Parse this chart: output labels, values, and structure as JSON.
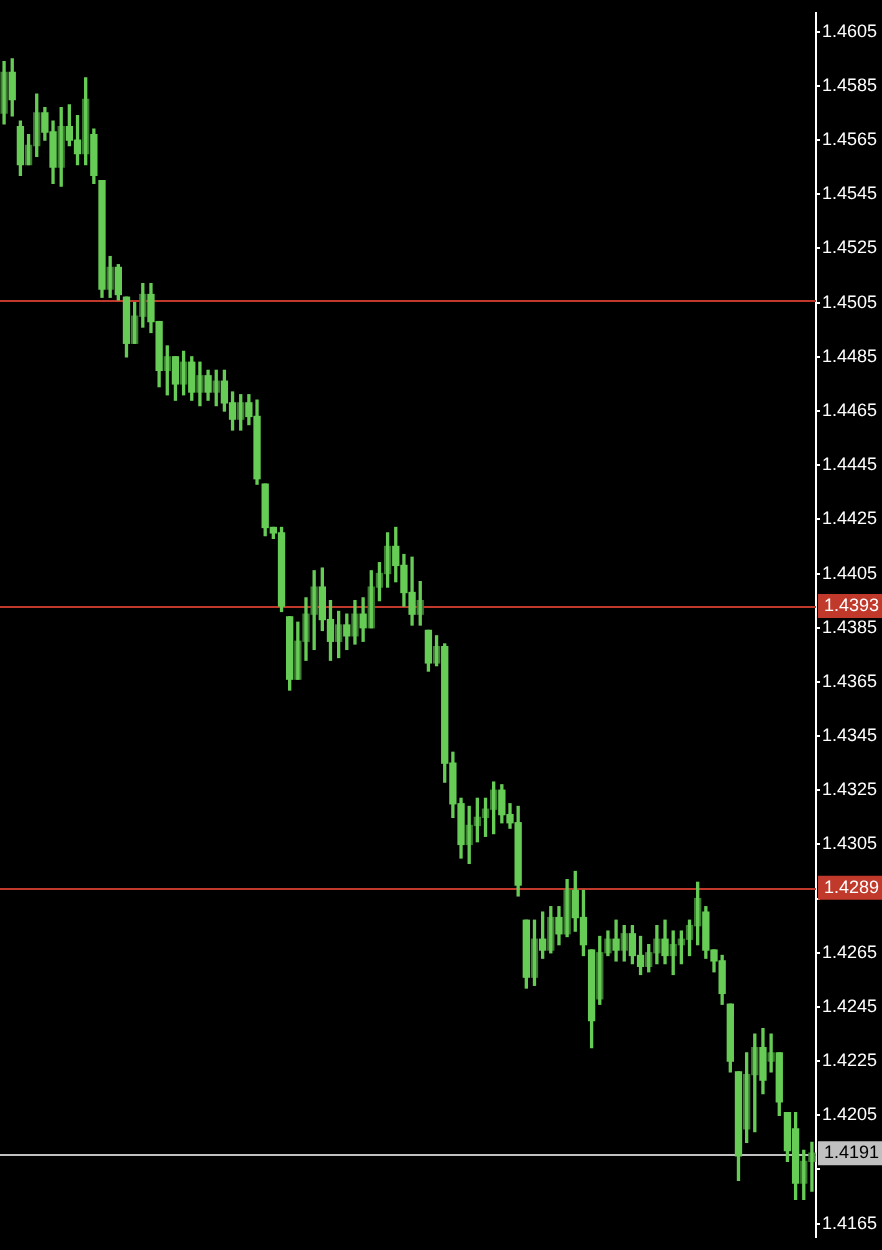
{
  "chart_data": {
    "type": "candlestick",
    "color": "#66cc55",
    "categories": [
      null,
      null,
      null,
      null,
      null,
      null,
      null,
      null,
      null,
      null,
      null,
      null,
      null,
      null,
      null,
      null,
      null,
      null,
      null,
      null,
      null,
      null,
      null,
      null,
      null,
      null,
      null,
      null,
      null,
      null,
      null,
      null,
      null,
      null,
      null,
      null,
      null,
      null,
      null,
      null,
      null,
      null,
      null,
      null,
      null,
      null,
      null,
      null,
      null,
      null,
      null,
      null,
      null,
      null,
      null,
      null,
      null,
      null,
      null,
      null,
      null,
      null,
      null,
      null,
      null,
      null,
      null,
      null,
      null,
      null,
      null,
      null,
      null,
      null,
      null,
      null,
      null,
      null,
      null,
      null,
      null,
      null,
      null,
      null,
      null,
      null,
      null,
      null,
      null,
      null,
      null,
      null,
      null,
      null,
      null,
      null,
      null,
      null,
      null,
      null
    ],
    "ohlc": [
      [
        1.4575,
        1.4594,
        1.4571,
        1.459
      ],
      [
        1.459,
        1.4595,
        1.4574,
        1.458
      ],
      [
        1.457,
        1.4572,
        1.4552,
        1.4556
      ],
      [
        1.4556,
        1.4567,
        1.4556,
        1.4563
      ],
      [
        1.4563,
        1.4582,
        1.4559,
        1.4575
      ],
      [
        1.4575,
        1.4577,
        1.4565,
        1.4568
      ],
      [
        1.4568,
        1.4572,
        1.4549,
        1.4555
      ],
      [
        1.4555,
        1.4577,
        1.4548,
        1.457
      ],
      [
        1.457,
        1.4578,
        1.4563,
        1.4565
      ],
      [
        1.4565,
        1.4574,
        1.4556,
        1.456
      ],
      [
        1.456,
        1.4588,
        1.4556,
        1.458
      ],
      [
        1.4567,
        1.4569,
        1.4549,
        1.4552
      ],
      [
        1.455,
        1.455,
        1.4507,
        1.451
      ],
      [
        1.451,
        1.4522,
        1.4507,
        1.4518
      ],
      [
        1.4518,
        1.4519,
        1.4506,
        1.4508
      ],
      [
        1.4507,
        1.4507,
        1.4485,
        1.449
      ],
      [
        1.449,
        1.4505,
        1.449,
        1.45
      ],
      [
        1.45,
        1.4512,
        1.4496,
        1.4508
      ],
      [
        1.4508,
        1.4512,
        1.4494,
        1.4498
      ],
      [
        1.4498,
        1.4498,
        1.4474,
        1.448
      ],
      [
        1.448,
        1.4489,
        1.4471,
        1.4485
      ],
      [
        1.4485,
        1.4485,
        1.4469,
        1.4475
      ],
      [
        1.4475,
        1.4487,
        1.4471,
        1.4483
      ],
      [
        1.4483,
        1.4485,
        1.4469,
        1.4472
      ],
      [
        1.4472,
        1.4483,
        1.4467,
        1.4478
      ],
      [
        1.4478,
        1.448,
        1.4469,
        1.4472
      ],
      [
        1.4472,
        1.448,
        1.4467,
        1.4476
      ],
      [
        1.4476,
        1.448,
        1.4465,
        1.4468
      ],
      [
        1.4468,
        1.4472,
        1.4458,
        1.4462
      ],
      [
        1.4462,
        1.4471,
        1.4458,
        1.4468
      ],
      [
        1.4468,
        1.4471,
        1.446,
        1.4463
      ],
      [
        1.4463,
        1.4469,
        1.4438,
        1.444
      ],
      [
        1.4438,
        1.4438,
        1.4419,
        1.4422
      ],
      [
        1.4422,
        1.4422,
        1.4418,
        1.442
      ],
      [
        1.442,
        1.4422,
        1.4391,
        1.4393
      ],
      [
        1.4389,
        1.4389,
        1.4362,
        1.4366
      ],
      [
        1.4366,
        1.4387,
        1.4366,
        1.438
      ],
      [
        1.438,
        1.4396,
        1.4373,
        1.439
      ],
      [
        1.439,
        1.4406,
        1.4377,
        1.44
      ],
      [
        1.44,
        1.4407,
        1.4384,
        1.4388
      ],
      [
        1.4388,
        1.4395,
        1.4373,
        1.438
      ],
      [
        1.438,
        1.4391,
        1.4374,
        1.4386
      ],
      [
        1.4386,
        1.439,
        1.4377,
        1.4382
      ],
      [
        1.4382,
        1.4395,
        1.4379,
        1.439
      ],
      [
        1.439,
        1.4396,
        1.438,
        1.4385
      ],
      [
        1.4385,
        1.4406,
        1.4385,
        1.44
      ],
      [
        1.44,
        1.4409,
        1.4395,
        1.4405
      ],
      [
        1.4405,
        1.442,
        1.44,
        1.4415
      ],
      [
        1.4415,
        1.4422,
        1.4402,
        1.4408
      ],
      [
        1.4408,
        1.4412,
        1.4393,
        1.4398
      ],
      [
        1.4398,
        1.4411,
        1.4386,
        1.439
      ],
      [
        1.439,
        1.4402,
        1.4386,
        1.4395
      ],
      [
        1.4384,
        1.4384,
        1.4369,
        1.4372
      ],
      [
        1.4372,
        1.4382,
        1.4371,
        1.4378
      ],
      [
        1.4378,
        1.4379,
        1.4328,
        1.4335
      ],
      [
        1.4335,
        1.4339,
        1.4315,
        1.432
      ],
      [
        1.432,
        1.4322,
        1.43,
        1.4305
      ],
      [
        1.4305,
        1.4319,
        1.4298,
        1.4312
      ],
      [
        1.4312,
        1.4322,
        1.4306,
        1.4315
      ],
      [
        1.4315,
        1.4322,
        1.4308,
        1.4318
      ],
      [
        1.4318,
        1.4328,
        1.4309,
        1.4325
      ],
      [
        1.4325,
        1.4327,
        1.4313,
        1.4316
      ],
      [
        1.4316,
        1.432,
        1.4311,
        1.4313
      ],
      [
        1.4313,
        1.4319,
        1.4286,
        1.429
      ],
      [
        1.4277,
        1.4277,
        1.4252,
        1.4256
      ],
      [
        1.4256,
        1.4277,
        1.4253,
        1.427
      ],
      [
        1.427,
        1.428,
        1.4263,
        1.4266
      ],
      [
        1.4266,
        1.4282,
        1.4265,
        1.4278
      ],
      [
        1.4278,
        1.4282,
        1.4268,
        1.4272
      ],
      [
        1.4272,
        1.4292,
        1.4271,
        1.4288
      ],
      [
        1.4288,
        1.4295,
        1.4273,
        1.4278
      ],
      [
        1.4278,
        1.4288,
        1.4264,
        1.4268
      ],
      [
        1.4266,
        1.4266,
        1.423,
        1.424
      ],
      [
        1.4248,
        1.4271,
        1.4246,
        1.4265
      ],
      [
        1.4265,
        1.4273,
        1.4264,
        1.427
      ],
      [
        1.427,
        1.4277,
        1.4262,
        1.4266
      ],
      [
        1.4266,
        1.4275,
        1.4262,
        1.4272
      ],
      [
        1.4272,
        1.4275,
        1.4261,
        1.4264
      ],
      [
        1.4264,
        1.4271,
        1.4257,
        1.426
      ],
      [
        1.426,
        1.4268,
        1.4258,
        1.4265
      ],
      [
        1.4265,
        1.4275,
        1.4261,
        1.427
      ],
      [
        1.427,
        1.4277,
        1.4261,
        1.4264
      ],
      [
        1.4264,
        1.4273,
        1.4257,
        1.4268
      ],
      [
        1.4268,
        1.4273,
        1.4261,
        1.427
      ],
      [
        1.427,
        1.4277,
        1.4264,
        1.4275
      ],
      [
        1.4275,
        1.4291,
        1.4268,
        1.4285
      ],
      [
        1.428,
        1.4282,
        1.4263,
        1.4266
      ],
      [
        1.4266,
        1.4266,
        1.4258,
        1.4262
      ],
      [
        1.4262,
        1.4264,
        1.4246,
        1.425
      ],
      [
        1.4246,
        1.4246,
        1.4221,
        1.4225
      ],
      [
        1.4221,
        1.4221,
        1.4181,
        1.419
      ],
      [
        1.42,
        1.4228,
        1.4195,
        1.422
      ],
      [
        1.422,
        1.4235,
        1.4199,
        1.423
      ],
      [
        1.423,
        1.4237,
        1.4213,
        1.4218
      ],
      [
        1.4225,
        1.4235,
        1.4221,
        1.4228
      ],
      [
        1.4228,
        1.4228,
        1.4205,
        1.421
      ],
      [
        1.4206,
        1.4206,
        1.4188,
        1.4192
      ],
      [
        1.42,
        1.4206,
        1.4174,
        1.418
      ],
      [
        1.418,
        1.4192,
        1.4174,
        1.4188
      ],
      [
        1.4188,
        1.4195,
        1.4177,
        1.4191
      ]
    ],
    "colors": [
      "#3d7a33",
      "#66cc55",
      "#66cc55",
      "#3d7a33",
      "#3d7a33",
      "#66cc55",
      "#66cc55",
      "#3d7a33",
      "#66cc55",
      "#66cc55",
      "#3d7a33",
      "#66cc55",
      "#66cc55",
      "#3d7a33",
      "#66cc55",
      "#66cc55",
      "#3d7a33",
      "#3d7a33",
      "#66cc55",
      "#66cc55",
      "#3d7a33",
      "#66cc55",
      "#3d7a33",
      "#66cc55",
      "#3d7a33",
      "#66cc55",
      "#3d7a33",
      "#66cc55",
      "#66cc55",
      "#3d7a33",
      "#66cc55",
      "#66cc55",
      "#66cc55",
      "#66cc55",
      "#66cc55",
      "#66cc55",
      "#3d7a33",
      "#3d7a33",
      "#3d7a33",
      "#66cc55",
      "#66cc55",
      "#3d7a33",
      "#66cc55",
      "#3d7a33",
      "#66cc55",
      "#3d7a33",
      "#3d7a33",
      "#3d7a33",
      "#66cc55",
      "#66cc55",
      "#66cc55",
      "#3d7a33",
      "#66cc55",
      "#3d7a33",
      "#66cc55",
      "#66cc55",
      "#66cc55",
      "#3d7a33",
      "#3d7a33",
      "#3d7a33",
      "#3d7a33",
      "#66cc55",
      "#66cc55",
      "#66cc55",
      "#66cc55",
      "#3d7a33",
      "#66cc55",
      "#3d7a33",
      "#66cc55",
      "#3d7a33",
      "#66cc55",
      "#66cc55",
      "#66cc55",
      "#3d7a33",
      "#3d7a33",
      "#66cc55",
      "#3d7a33",
      "#66cc55",
      "#66cc55",
      "#3d7a33",
      "#3d7a33",
      "#66cc55",
      "#3d7a33",
      "#3d7a33",
      "#3d7a33",
      "#3d7a33",
      "#66cc55",
      "#66cc55",
      "#66cc55",
      "#66cc55",
      "#66cc55",
      "#3d7a33",
      "#3d7a33",
      "#66cc55",
      "#3d7a33",
      "#66cc55",
      "#66cc55",
      "#66cc55",
      "#3d7a33",
      "#3d7a33"
    ],
    "ylim": [
      1.416,
      1.4612
    ],
    "yticks": [
      1.4605,
      1.4585,
      1.4565,
      1.4545,
      1.4525,
      1.4505,
      1.4485,
      1.4465,
      1.4445,
      1.4425,
      1.4405,
      1.4385,
      1.4365,
      1.4345,
      1.4325,
      1.4305,
      {
        "value": 1.4285,
        "label": null
      },
      1.4265,
      1.4245,
      1.4225,
      1.4205,
      {
        "value": 1.4185,
        "label": null
      },
      1.4165
    ],
    "ref_lines": [
      {
        "axis": "y",
        "value": 1.4506,
        "label": null,
        "color": "#c0392b"
      },
      {
        "axis": "y",
        "value": 1.4393,
        "label": "1.4393",
        "color": "#c0392b"
      },
      {
        "axis": "y",
        "value": 1.4289,
        "label": "1.4289",
        "color": "#c0392b"
      },
      {
        "axis": "y",
        "value": 1.4191,
        "label": "1.4191",
        "color": "#c0c0c0"
      }
    ],
    "grid": false,
    "legend": false,
    "tick_labels": "y"
  }
}
